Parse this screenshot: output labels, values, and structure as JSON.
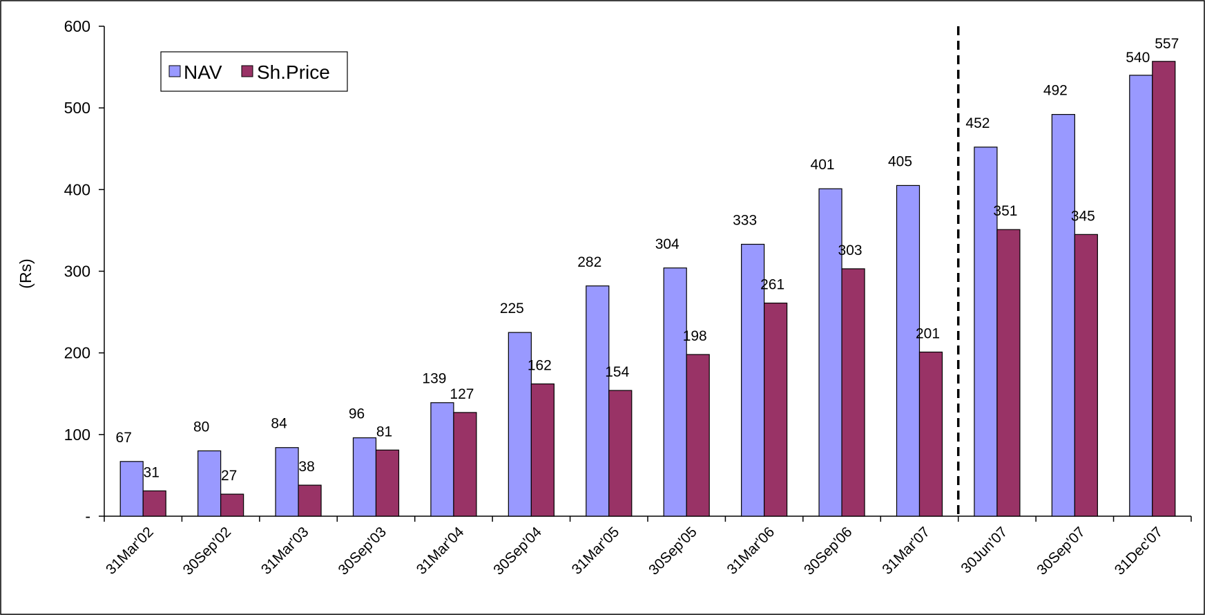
{
  "chart_data": {
    "type": "bar",
    "title": "",
    "xlabel": "",
    "ylabel": "(Rs)",
    "ylim": [
      0,
      600
    ],
    "yticks": [
      0,
      100,
      200,
      300,
      400,
      500,
      600
    ],
    "ytick_labels": [
      "-",
      "100",
      "200",
      "300",
      "400",
      "500",
      "600"
    ],
    "categories": [
      "31Mar'02",
      "30Sep'02",
      "31Mar'03",
      "30Sep'03",
      "31Mar'04",
      "30Sep'04",
      "31Mar'05",
      "30Sep'05",
      "31Mar'06",
      "30Sep'06",
      "31Mar'07",
      "30Jun'07",
      "30Sep'07",
      "31Dec'07"
    ],
    "series": [
      {
        "name": "NAV",
        "color": "#9999ff",
        "values": [
          67,
          80,
          84,
          96,
          139,
          225,
          282,
          304,
          333,
          401,
          405,
          452,
          492,
          540
        ]
      },
      {
        "name": "Sh.Price",
        "color": "#993366",
        "values": [
          31,
          27,
          38,
          81,
          127,
          162,
          154,
          198,
          261,
          303,
          201,
          351,
          345,
          557
        ]
      }
    ],
    "divider_after_category": "31Mar'07",
    "legend_position": "top-left",
    "grid": false
  }
}
